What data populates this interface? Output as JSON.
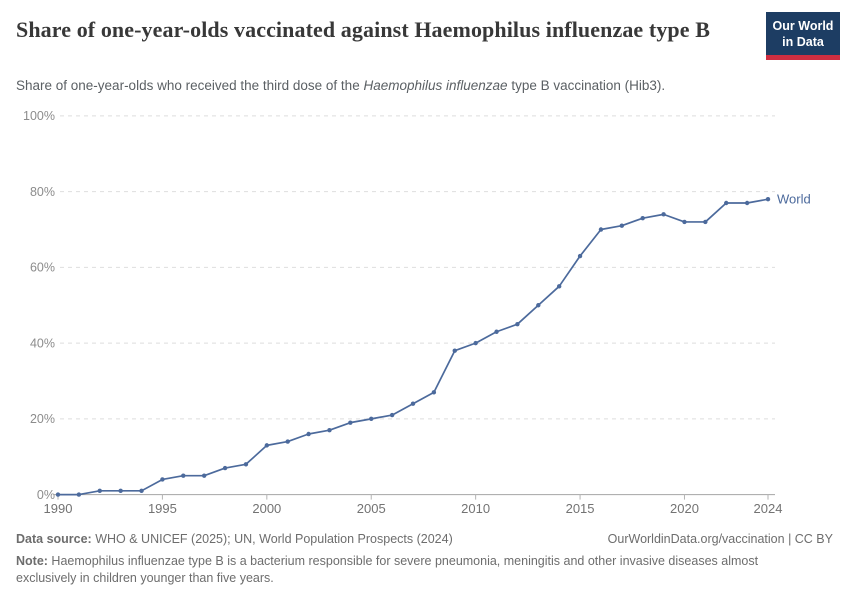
{
  "header": {
    "title": "Share of one-year-olds vaccinated against Haemophilus influenzae type B",
    "subtitle_prefix": "Share of one-year-olds who received the third dose of the ",
    "subtitle_italic": "Haemophilus influenzae",
    "subtitle_suffix": " type B vaccination (Hib3)."
  },
  "logo": {
    "line1": "Our World",
    "line2": "in Data",
    "bg_color": "#1d3d63",
    "bar_color": "#cf2e41"
  },
  "chart_data": {
    "type": "line",
    "title": "Share of one-year-olds vaccinated against Haemophilus influenzae type B",
    "xlabel": "",
    "ylabel": "",
    "x": [
      1990,
      1991,
      1992,
      1993,
      1994,
      1995,
      1996,
      1997,
      1998,
      1999,
      2000,
      2001,
      2002,
      2003,
      2004,
      2005,
      2006,
      2007,
      2008,
      2009,
      2010,
      2011,
      2012,
      2013,
      2014,
      2015,
      2016,
      2017,
      2018,
      2019,
      2020,
      2021,
      2022,
      2023,
      2024
    ],
    "series": [
      {
        "name": "World",
        "color": "#4C6A9C",
        "values": [
          0,
          0,
          1,
          1,
          1,
          4,
          5,
          5,
          7,
          8,
          13,
          14,
          16,
          17,
          19,
          20,
          21,
          24,
          27,
          38,
          40,
          43,
          45,
          50,
          55,
          63,
          70,
          71,
          73,
          74,
          72,
          72,
          77,
          77,
          78
        ]
      }
    ],
    "xlim": [
      1990,
      2024
    ],
    "ylim": [
      0,
      100
    ],
    "xticks": [
      1990,
      1995,
      2000,
      2005,
      2010,
      2015,
      2020,
      2024
    ],
    "yticks": [
      0,
      20,
      40,
      60,
      80,
      100
    ],
    "ytick_suffix": "%",
    "grid": "horizontal dashed",
    "legend": "line-end label"
  },
  "footer": {
    "source_label": "Data source:",
    "source_text": " WHO & UNICEF (2025); UN, World Population Prospects (2024)",
    "link": "OurWorldinData.org/vaccination | CC BY",
    "note_label": "Note:",
    "note_text": " Haemophilus influenzae type B is a bacterium responsible for severe pneumonia, meningitis and other invasive diseases almost exclusively in children younger than five years."
  }
}
